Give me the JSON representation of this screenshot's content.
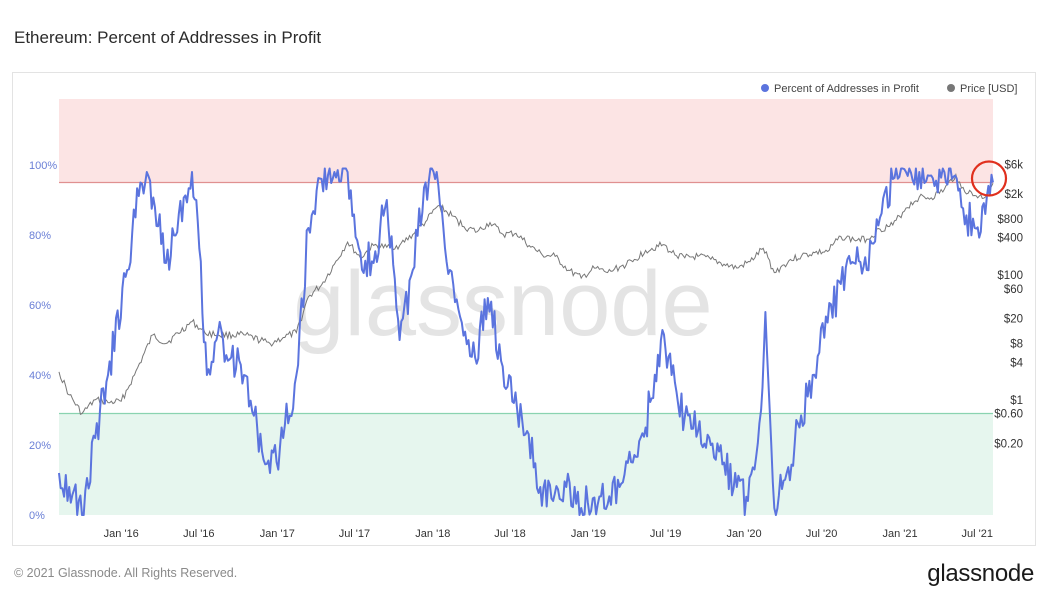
{
  "title": "Ethereum: Percent of Addresses in Profit",
  "footer": {
    "copyright": "© 2021 Glassnode. All Rights Reserved.",
    "brand": "glassnode"
  },
  "watermark": "glassnode",
  "chart_data": {
    "type": "line",
    "title": "Ethereum: Percent of Addresses in Profit",
    "x_ticks": [
      "Jan '16",
      "Jul '16",
      "Jan '17",
      "Jul '17",
      "Jan '18",
      "Jul '18",
      "Jan '19",
      "Jul '19",
      "Jan '20",
      "Jul '20",
      "Jan '21",
      "Jul '21"
    ],
    "y_left": {
      "ticks": [
        "0%",
        "20%",
        "40%",
        "60%",
        "80%",
        "100%"
      ],
      "range": [
        0,
        100
      ]
    },
    "y_right": {
      "scale": "log",
      "ticks": [
        "$0.20",
        "$0.60",
        "$1",
        "$4",
        "$8",
        "$20",
        "$60",
        "$100",
        "$400",
        "$800",
        "$2k",
        "$6k"
      ]
    },
    "zones": [
      {
        "name": "high",
        "from": 95,
        "to": 120,
        "color": "#fce4e4"
      },
      {
        "name": "low",
        "from": 0,
        "to": 29,
        "color": "#e6f6ee"
      }
    ],
    "legend": {
      "position": "top-right"
    },
    "colors": {
      "profit": "#5b74de",
      "price": "#777777",
      "zone_line_high": "#e09090",
      "zone_line_low": "#8ad3b0",
      "highlight": "#e0301e"
    },
    "series": [
      {
        "name": "Percent of Addresses in Profit",
        "axis": "left",
        "points": [
          [
            "2015-08-08",
            12
          ],
          [
            "2015-09-01",
            8
          ],
          [
            "2015-10-01",
            0
          ],
          [
            "2015-11-01",
            22
          ],
          [
            "2015-12-01",
            40
          ],
          [
            "2016-01-15",
            70
          ],
          [
            "2016-02-15",
            95
          ],
          [
            "2016-03-01",
            98
          ],
          [
            "2016-03-20",
            88
          ],
          [
            "2016-04-15",
            72
          ],
          [
            "2016-05-15",
            86
          ],
          [
            "2016-06-15",
            98
          ],
          [
            "2016-06-25",
            90
          ],
          [
            "2016-07-20",
            40
          ],
          [
            "2016-08-15",
            52
          ],
          [
            "2016-09-15",
            45
          ],
          [
            "2016-10-15",
            40
          ],
          [
            "2016-11-15",
            25
          ],
          [
            "2016-12-15",
            12
          ],
          [
            "2017-01-15",
            22
          ],
          [
            "2017-02-15",
            40
          ],
          [
            "2017-03-15",
            82
          ],
          [
            "2017-04-15",
            96
          ],
          [
            "2017-05-15",
            98
          ],
          [
            "2017-06-15",
            98
          ],
          [
            "2017-07-15",
            75
          ],
          [
            "2017-08-15",
            72
          ],
          [
            "2017-09-15",
            90
          ],
          [
            "2017-10-15",
            50
          ],
          [
            "2017-11-15",
            70
          ],
          [
            "2017-12-15",
            95
          ],
          [
            "2018-01-10",
            98
          ],
          [
            "2018-02-10",
            70
          ],
          [
            "2018-03-10",
            55
          ],
          [
            "2018-04-10",
            45
          ],
          [
            "2018-05-10",
            62
          ],
          [
            "2018-06-10",
            44
          ],
          [
            "2018-07-10",
            32
          ],
          [
            "2018-08-10",
            24
          ],
          [
            "2018-09-10",
            8
          ],
          [
            "2018-10-10",
            4
          ],
          [
            "2018-11-10",
            8
          ],
          [
            "2018-12-15",
            2
          ],
          [
            "2019-01-15",
            5
          ],
          [
            "2019-02-15",
            3
          ],
          [
            "2019-03-15",
            8
          ],
          [
            "2019-04-15",
            15
          ],
          [
            "2019-05-15",
            25
          ],
          [
            "2019-06-20",
            50
          ],
          [
            "2019-07-15",
            40
          ],
          [
            "2019-08-15",
            28
          ],
          [
            "2019-09-15",
            24
          ],
          [
            "2019-10-15",
            20
          ],
          [
            "2019-11-15",
            15
          ],
          [
            "2019-12-15",
            8
          ],
          [
            "2020-01-10",
            4
          ],
          [
            "2020-02-10",
            30
          ],
          [
            "2020-02-20",
            58
          ],
          [
            "2020-03-12",
            2
          ],
          [
            "2020-04-10",
            12
          ],
          [
            "2020-05-10",
            25
          ],
          [
            "2020-06-10",
            40
          ],
          [
            "2020-07-15",
            55
          ],
          [
            "2020-08-15",
            66
          ],
          [
            "2020-09-15",
            72
          ],
          [
            "2020-10-15",
            70
          ],
          [
            "2020-11-15",
            85
          ],
          [
            "2020-12-15",
            96
          ],
          [
            "2021-01-15",
            98
          ],
          [
            "2021-02-15",
            98
          ],
          [
            "2021-03-15",
            97
          ],
          [
            "2021-04-15",
            98
          ],
          [
            "2021-05-10",
            97
          ],
          [
            "2021-05-25",
            88
          ],
          [
            "2021-06-25",
            82
          ],
          [
            "2021-07-20",
            86
          ],
          [
            "2021-08-07",
            95
          ]
        ]
      },
      {
        "name": "Price [USD]",
        "axis": "right",
        "points": [
          [
            "2015-08-08",
            2.8
          ],
          [
            "2015-09-01",
            1.2
          ],
          [
            "2015-10-01",
            0.6
          ],
          [
            "2015-11-01",
            1.0
          ],
          [
            "2015-12-01",
            0.9
          ],
          [
            "2016-01-01",
            0.95
          ],
          [
            "2016-02-01",
            2.5
          ],
          [
            "2016-03-15",
            11
          ],
          [
            "2016-04-15",
            8
          ],
          [
            "2016-06-15",
            18
          ],
          [
            "2016-07-15",
            12
          ],
          [
            "2016-08-15",
            11
          ],
          [
            "2016-10-15",
            11
          ],
          [
            "2016-12-15",
            8
          ],
          [
            "2017-01-15",
            10
          ],
          [
            "2017-02-15",
            12
          ],
          [
            "2017-03-15",
            45
          ],
          [
            "2017-04-15",
            70
          ],
          [
            "2017-05-15",
            150
          ],
          [
            "2017-06-15",
            340
          ],
          [
            "2017-07-15",
            190
          ],
          [
            "2017-08-15",
            300
          ],
          [
            "2017-09-15",
            280
          ],
          [
            "2017-10-15",
            300
          ],
          [
            "2017-11-15",
            450
          ],
          [
            "2017-12-15",
            720
          ],
          [
            "2018-01-13",
            1300
          ],
          [
            "2018-02-15",
            900
          ],
          [
            "2018-03-15",
            600
          ],
          [
            "2018-04-15",
            500
          ],
          [
            "2018-05-15",
            700
          ],
          [
            "2018-06-15",
            450
          ],
          [
            "2018-07-15",
            470
          ],
          [
            "2018-08-15",
            300
          ],
          [
            "2018-09-15",
            210
          ],
          [
            "2018-10-15",
            200
          ],
          [
            "2018-11-15",
            120
          ],
          [
            "2018-12-15",
            90
          ],
          [
            "2019-01-15",
            130
          ],
          [
            "2019-02-15",
            110
          ],
          [
            "2019-03-15",
            135
          ],
          [
            "2019-04-15",
            165
          ],
          [
            "2019-05-15",
            250
          ],
          [
            "2019-06-25",
            310
          ],
          [
            "2019-07-15",
            230
          ],
          [
            "2019-08-15",
            190
          ],
          [
            "2019-09-15",
            200
          ],
          [
            "2019-10-15",
            180
          ],
          [
            "2019-11-15",
            150
          ],
          [
            "2019-12-15",
            130
          ],
          [
            "2020-01-15",
            165
          ],
          [
            "2020-02-15",
            270
          ],
          [
            "2020-03-12",
            110
          ],
          [
            "2020-04-15",
            170
          ],
          [
            "2020-05-15",
            205
          ],
          [
            "2020-06-15",
            230
          ],
          [
            "2020-07-15",
            240
          ],
          [
            "2020-08-15",
            420
          ],
          [
            "2020-09-15",
            370
          ],
          [
            "2020-10-15",
            380
          ],
          [
            "2020-11-15",
            550
          ],
          [
            "2020-12-15",
            640
          ],
          [
            "2021-01-15",
            1200
          ],
          [
            "2021-02-15",
            1800
          ],
          [
            "2021-03-15",
            1750
          ],
          [
            "2021-04-15",
            2400
          ],
          [
            "2021-05-12",
            4100
          ],
          [
            "2021-05-25",
            2500
          ],
          [
            "2021-06-25",
            1900
          ],
          [
            "2021-07-20",
            1800
          ],
          [
            "2021-08-07",
            3000
          ]
        ]
      }
    ]
  }
}
